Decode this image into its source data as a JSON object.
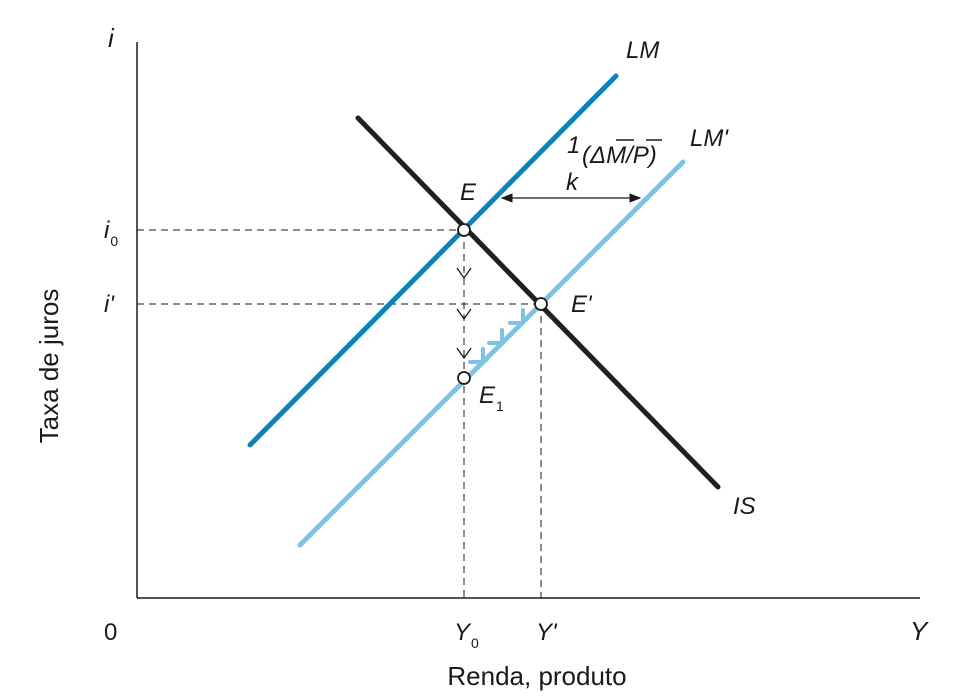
{
  "colors": {
    "axis": "#1a1a1a",
    "is_curve": "#231f20",
    "lm_curve": "#0a84b8",
    "lm_prime_curve": "#7cc4e6",
    "guide": "#1a1a1a"
  },
  "axes": {
    "y_label": "i",
    "x_label": "Y",
    "origin_label": "0",
    "y_title": "Taxa de juros",
    "x_title": "Renda, produto"
  },
  "y_ticks": {
    "i0": {
      "base": "i",
      "sub": "0"
    },
    "i_prime": "i'"
  },
  "x_ticks": {
    "y0": {
      "base": "Y",
      "sub": "0"
    },
    "y_prime": "Y'"
  },
  "curves": {
    "lm": "LM",
    "lm_prime": "LM'",
    "is": "IS"
  },
  "points": {
    "e": "E",
    "e_prime": "E'",
    "e1": {
      "base": "E",
      "sub": "1"
    }
  },
  "shift_annotation": {
    "numerator": "1",
    "fraction_denominator": "k",
    "expression": "(ΔM/P)"
  }
}
